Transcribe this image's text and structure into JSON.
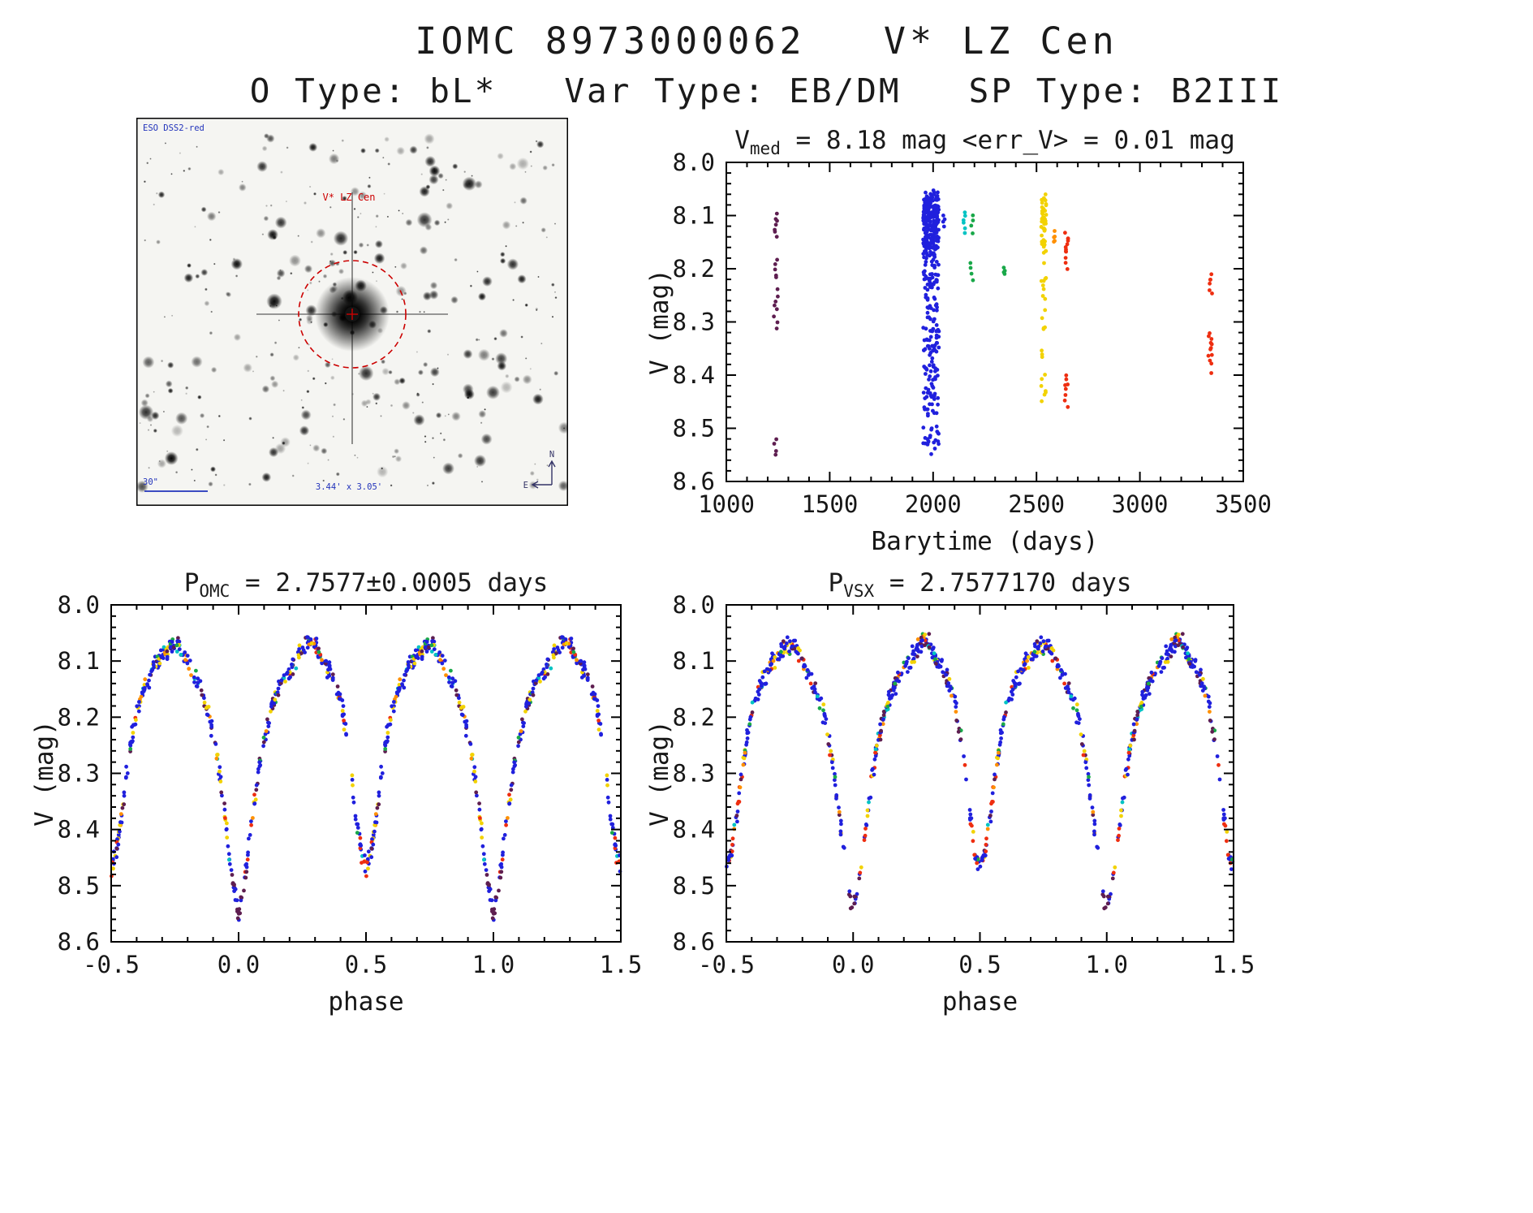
{
  "header": {
    "title": "IOMC 8973000062   V* LZ Cen",
    "subtitle": "O Type: bL*   Var Type: EB/DM   SP Type: B2III"
  },
  "finder": {
    "target_label": "V* LZ Cen",
    "survey_label": "ESO DSS2-red",
    "scale_label": "30\"",
    "fov_label": "3.44' x 3.05'",
    "north_label": "N",
    "east_label": "E"
  },
  "colors": {
    "blue": "#2020dd",
    "purple": "#5e1e50",
    "cyan": "#00c3c3",
    "green": "#19a849",
    "yellow": "#f2d200",
    "orange": "#ff9000",
    "red": "#ee2e10",
    "axis": "#000000",
    "annotation_red": "#cc0000",
    "annotation_blue": "#2233bb"
  },
  "light_curve_model": {
    "phase": [
      0.0,
      0.02,
      0.04,
      0.06,
      0.08,
      0.1,
      0.12,
      0.14,
      0.16,
      0.18,
      0.2,
      0.22,
      0.25,
      0.28,
      0.3,
      0.32,
      0.34,
      0.36,
      0.38,
      0.4,
      0.42,
      0.44,
      0.46,
      0.48,
      0.5,
      0.52,
      0.54,
      0.56,
      0.58,
      0.6,
      0.62,
      0.64,
      0.66,
      0.68,
      0.7,
      0.72,
      0.75,
      0.78,
      0.8,
      0.82,
      0.84,
      0.86,
      0.88,
      0.9,
      0.92,
      0.94,
      0.96,
      0.98
    ],
    "mag": [
      8.55,
      8.5,
      8.43,
      8.36,
      8.29,
      8.24,
      8.2,
      8.17,
      8.15,
      8.13,
      8.12,
      8.1,
      8.08,
      8.06,
      8.07,
      8.09,
      8.11,
      8.12,
      8.14,
      8.17,
      8.22,
      8.29,
      8.37,
      8.44,
      8.47,
      8.44,
      8.38,
      8.3,
      8.24,
      8.19,
      8.16,
      8.14,
      8.12,
      8.1,
      8.09,
      8.08,
      8.07,
      8.08,
      8.1,
      8.12,
      8.14,
      8.16,
      8.19,
      8.23,
      8.28,
      8.35,
      8.43,
      8.5
    ]
  },
  "chart_data": [
    {
      "id": "barytime",
      "type": "scatter",
      "title": {
        "main": "V",
        "sub": "med",
        "rest": " = 8.18 mag <err_V> = 0.01 mag"
      },
      "xlabel": "Barytime (days)",
      "ylabel": "V (mag)",
      "xlim": [
        1000,
        3500
      ],
      "ylim": [
        8.0,
        8.6
      ],
      "y_inverted": true,
      "xticks": {
        "values": [
          1000,
          1500,
          2000,
          2500,
          3000,
          3500
        ],
        "labels": [
          "1000",
          "1500",
          "2000",
          "2500",
          "3000",
          "3500"
        ]
      },
      "yticks": {
        "values": [
          8.0,
          8.1,
          8.2,
          8.3,
          8.4,
          8.5,
          8.6
        ],
        "labels": [
          "8.0",
          "8.1",
          "8.2",
          "8.3",
          "8.4",
          "8.5",
          "8.6"
        ]
      },
      "xminor": 4,
      "yminor": 4,
      "clusters": [
        {
          "x": 1240,
          "xspread": 10,
          "color": "purple",
          "ys": [
            8.1,
            8.11,
            8.11,
            8.12,
            8.13,
            8.13,
            8.14,
            8.18,
            8.19,
            8.2,
            8.21,
            8.22,
            8.24,
            8.25,
            8.26,
            8.27,
            8.28,
            8.29,
            8.3,
            8.31,
            8.52,
            8.53,
            8.54,
            8.55
          ]
        },
        {
          "x": 1990,
          "xspread": 38,
          "color": "blue",
          "n": 400,
          "sample": "model",
          "noise": 0.012
        },
        {
          "x": 2050,
          "xspread": 6,
          "color": "blue",
          "ys": [
            8.1,
            8.11,
            8.11,
            8.12
          ]
        },
        {
          "x": 2150,
          "xspread": 8,
          "color": "cyan",
          "ys": [
            8.09,
            8.1,
            8.11,
            8.11,
            8.12,
            8.13
          ]
        },
        {
          "x": 2185,
          "xspread": 8,
          "color": "green",
          "ys": [
            8.1,
            8.11,
            8.12,
            8.13,
            8.19,
            8.2,
            8.21,
            8.22
          ]
        },
        {
          "x": 2345,
          "xspread": 6,
          "color": "green",
          "ys": [
            8.2,
            8.2,
            8.21,
            8.21
          ]
        },
        {
          "x": 2535,
          "xspread": 12,
          "color": "yellow",
          "n": 70,
          "sample": "model",
          "noise": 0.012,
          "clip": [
            8.06,
            8.45
          ]
        },
        {
          "x": 2590,
          "xspread": 6,
          "color": "orange",
          "ys": [
            8.13,
            8.14,
            8.14,
            8.15,
            8.15
          ]
        },
        {
          "x": 2645,
          "xspread": 8,
          "color": "red",
          "ys": [
            8.13,
            8.14,
            8.14,
            8.15,
            8.15,
            8.16,
            8.16,
            8.17,
            8.17,
            8.18,
            8.19,
            8.2,
            8.4,
            8.41,
            8.42,
            8.42,
            8.43,
            8.44,
            8.45,
            8.46
          ]
        },
        {
          "x": 3340,
          "xspread": 10,
          "color": "red",
          "ys": [
            8.21,
            8.22,
            8.22,
            8.23,
            8.24,
            8.25,
            8.32,
            8.33,
            8.33,
            8.34,
            8.34,
            8.35,
            8.35,
            8.36,
            8.36,
            8.37,
            8.38,
            8.4
          ]
        }
      ]
    },
    {
      "id": "phase_omc",
      "type": "scatter",
      "title": {
        "main": "P",
        "sub": "OMC",
        "rest": " = 2.7577±0.0005 days"
      },
      "xlabel": "phase",
      "ylabel": "V (mag)",
      "xlim": [
        -0.5,
        1.5
      ],
      "ylim": [
        8.0,
        8.6
      ],
      "y_inverted": true,
      "xticks": {
        "values": [
          -0.5,
          0.0,
          0.5,
          1.0,
          1.5
        ],
        "labels": [
          "-0.5",
          "0.0",
          "0.5",
          "1.0",
          "1.5"
        ]
      },
      "yticks": {
        "values": [
          8.0,
          8.1,
          8.2,
          8.3,
          8.4,
          8.5,
          8.6
        ],
        "labels": [
          "8.0",
          "8.1",
          "8.2",
          "8.3",
          "8.4",
          "8.5",
          "8.6"
        ]
      },
      "xminor": 4,
      "yminor": 4,
      "folded": true,
      "model": "light_curve_model",
      "n_points": 430,
      "noise": 0.013
    },
    {
      "id": "phase_vsx",
      "type": "scatter",
      "title": {
        "main": "P",
        "sub": "VSX",
        "rest": " = 2.7577170 days"
      },
      "xlabel": "phase",
      "ylabel": "V (mag)",
      "xlim": [
        -0.5,
        1.5
      ],
      "ylim": [
        8.0,
        8.6
      ],
      "y_inverted": true,
      "xticks": {
        "values": [
          -0.5,
          0.0,
          0.5,
          1.0,
          1.5
        ],
        "labels": [
          "-0.5",
          "0.0",
          "0.5",
          "1.0",
          "1.5"
        ]
      },
      "yticks": {
        "values": [
          8.0,
          8.1,
          8.2,
          8.3,
          8.4,
          8.5,
          8.6
        ],
        "labels": [
          "8.0",
          "8.1",
          "8.2",
          "8.3",
          "8.4",
          "8.5",
          "8.6"
        ]
      },
      "xminor": 4,
      "yminor": 4,
      "folded": true,
      "model": "light_curve_model",
      "n_points": 430,
      "noise": 0.013
    }
  ]
}
